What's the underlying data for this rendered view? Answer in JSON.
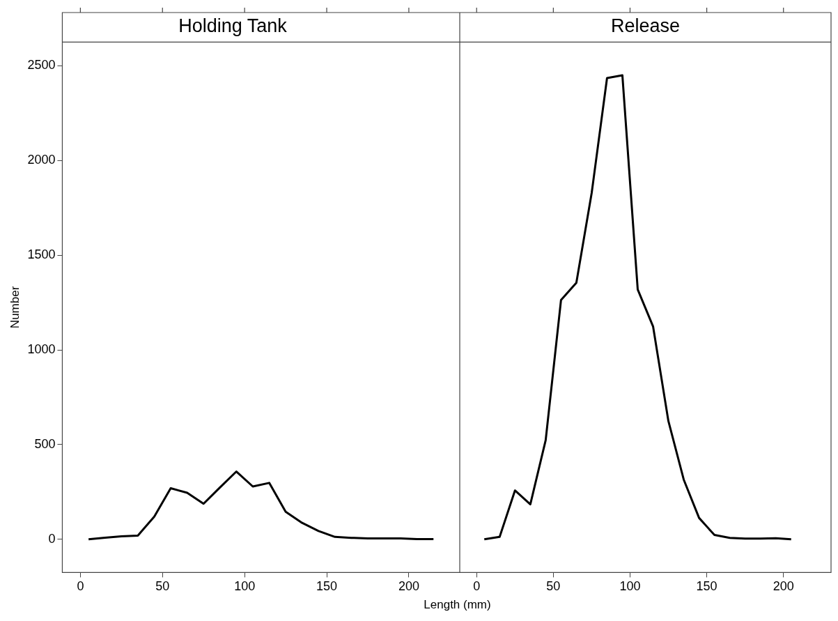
{
  "chart_data": [
    {
      "type": "line",
      "title": "Holding Tank",
      "xlabel": "Length (mm)",
      "ylabel": "Number",
      "xlim": [
        -11,
        231
      ],
      "xticks": [
        0,
        50,
        100,
        150,
        200
      ],
      "ylim": [
        -175,
        2625
      ],
      "yticks": [
        0,
        500,
        1000,
        1500,
        2000,
        2500
      ],
      "grid": false,
      "marker": "none",
      "line_style": "solid",
      "series": [
        {
          "color": "#000000",
          "x": [
            5,
            15,
            25,
            35,
            45,
            55,
            65,
            75,
            85,
            95,
            105,
            115,
            125,
            135,
            145,
            155,
            165,
            175,
            185,
            195,
            205,
            215
          ],
          "values": [
            0,
            9,
            16,
            20,
            120,
            270,
            246,
            188,
            274,
            358,
            279,
            298,
            146,
            87,
            44,
            13,
            8,
            5,
            5,
            5,
            1,
            1
          ]
        }
      ]
    },
    {
      "type": "line",
      "title": "Release",
      "xlim": [
        -11,
        231
      ],
      "xticks": [
        0,
        50,
        100,
        150,
        200
      ],
      "ylim": [
        -175,
        2625
      ],
      "yticks": [
        0,
        500,
        1000,
        1500,
        2000,
        2500
      ],
      "tick_labels": "x",
      "grid": false,
      "marker": "none",
      "line_style": "solid",
      "series": [
        {
          "color": "#000000",
          "x": [
            5,
            15,
            25,
            35,
            45,
            55,
            65,
            75,
            85,
            95,
            105,
            115,
            125,
            135,
            145,
            155,
            165,
            175,
            185,
            195,
            205
          ],
          "values": [
            0,
            13,
            258,
            185,
            523,
            1263,
            1354,
            1829,
            2435,
            2450,
            1319,
            1124,
            624,
            315,
            113,
            23,
            8,
            4,
            4,
            6,
            0
          ]
        }
      ]
    }
  ]
}
